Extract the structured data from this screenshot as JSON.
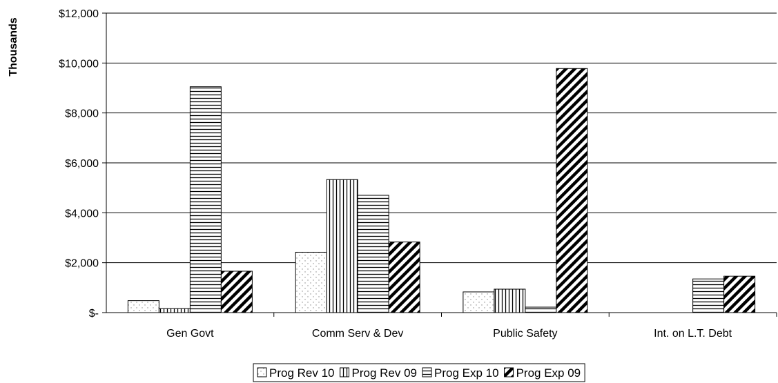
{
  "chart_data": {
    "type": "bar",
    "categories": [
      "Gen Govt",
      "Comm Serv & Dev",
      "Public Safety",
      "Int. on L.T. Debt"
    ],
    "series": [
      {
        "name": "Prog Rev 10",
        "values": [
          480,
          2420,
          830,
          0
        ],
        "pattern": "dots"
      },
      {
        "name": "Prog Rev 09",
        "values": [
          160,
          5330,
          940,
          0
        ],
        "pattern": "vertical"
      },
      {
        "name": "Prog Exp 10",
        "values": [
          9050,
          4700,
          220,
          1350
        ],
        "pattern": "horizontal"
      },
      {
        "name": "Prog Exp 09",
        "values": [
          1660,
          2830,
          9780,
          1460
        ],
        "pattern": "diagonal"
      }
    ],
    "ylabel": "Thousands",
    "ylim": [
      0,
      12000
    ],
    "yticks": [
      0,
      2000,
      4000,
      6000,
      8000,
      10000,
      12000
    ],
    "ytick_labels": [
      "$-",
      "$2,000",
      "$4,000",
      "$6,000",
      "$8,000",
      "$10,000",
      "$12,000"
    ],
    "grid": true,
    "legend_position": "bottom"
  }
}
